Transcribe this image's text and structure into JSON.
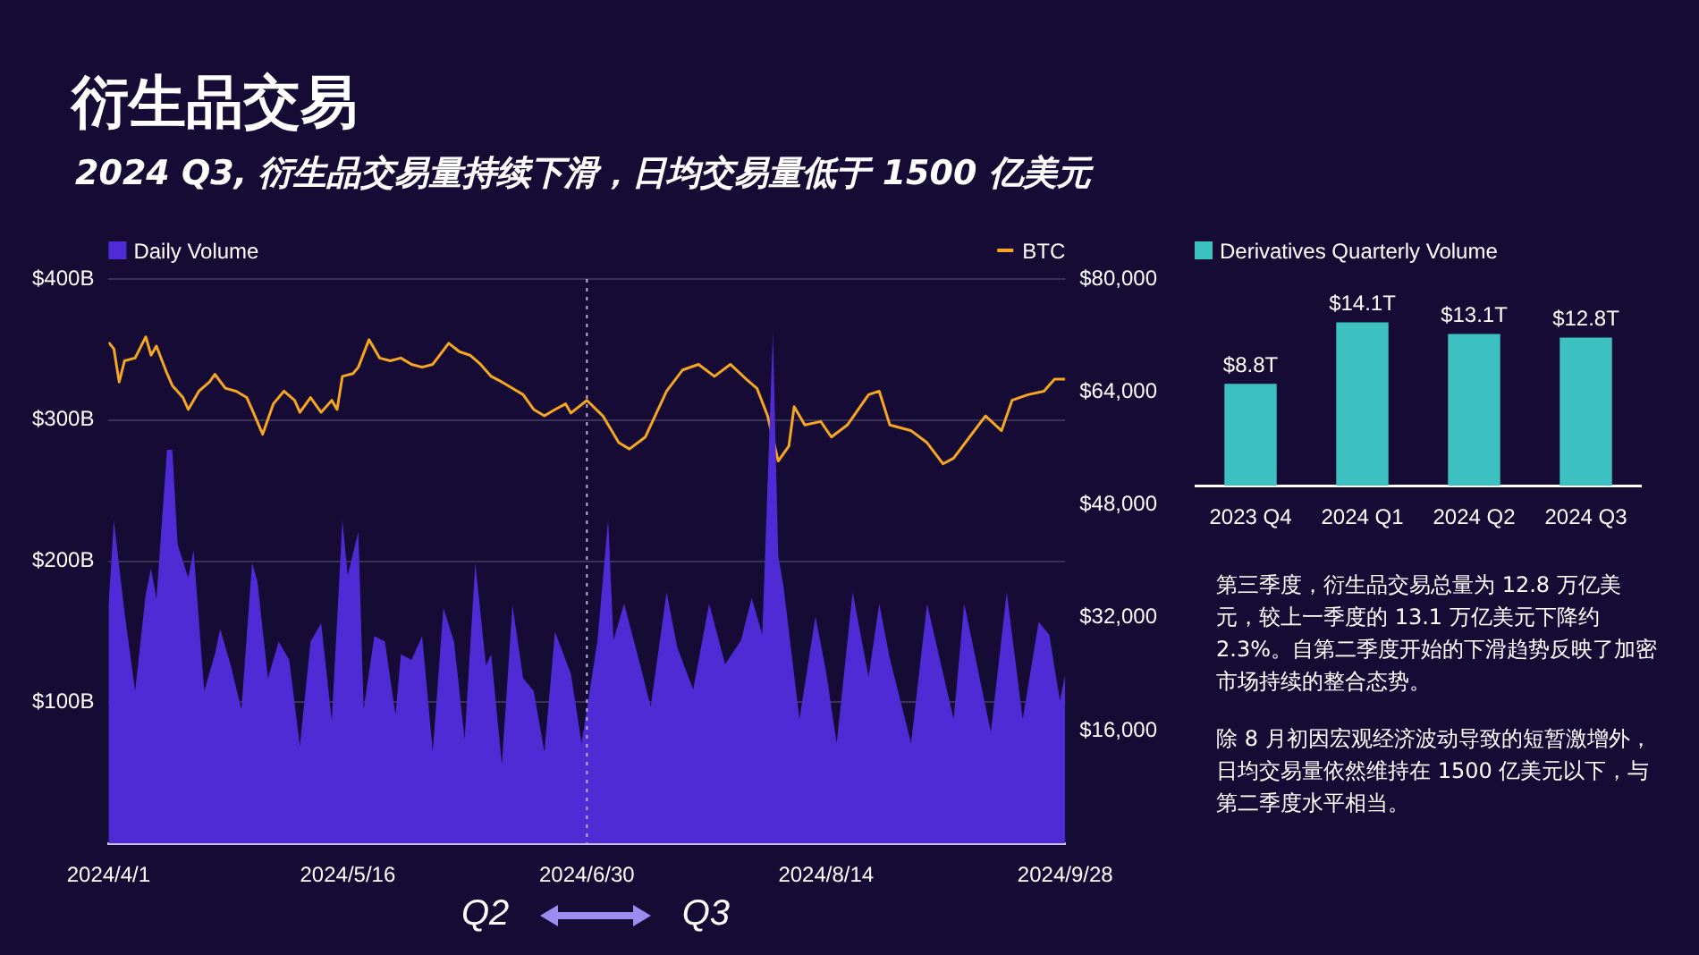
{
  "chart_data": [
    {
      "type": "area",
      "title": "衍生品交易",
      "subtitle": "2024 Q3, 衍生品交易量持续下滑，日均交易量低于 1500 亿美元",
      "legend": "top",
      "grid": "y",
      "marker": "none",
      "xlim": [
        "2024-04-01",
        "2024-09-28"
      ],
      "xticks": [
        {
          "value": "2024-04-01",
          "label": "2024/4/1"
        },
        {
          "value": "2024-05-16",
          "label": "2024/5/16"
        },
        {
          "value": "2024-06-30",
          "label": "2024/6/30"
        },
        {
          "value": "2024-08-14",
          "label": "2024/8/14"
        },
        {
          "value": "2024-09-28",
          "label": "2024/9/28"
        }
      ],
      "ylim": [
        0,
        400
      ],
      "yticks": [
        {
          "value": 100,
          "label": "$100B"
        },
        {
          "value": 200,
          "label": "$200B"
        },
        {
          "value": 300,
          "label": "$300B"
        },
        {
          "value": 400,
          "label": "$400B"
        }
      ],
      "y2lim": [
        0,
        80000
      ],
      "y2ticks": [
        {
          "value": 16000,
          "label": "$16,000"
        },
        {
          "value": 32000,
          "label": "$32,000"
        },
        {
          "value": 48000,
          "label": "$48,000"
        },
        {
          "value": 64000,
          "label": "$64,000"
        },
        {
          "value": 80000,
          "label": "$80,000"
        }
      ],
      "ref_lines": [
        {
          "axis": "x",
          "value": "2024-06-30",
          "color": "#b9b3d6",
          "line_style": "dotted"
        }
      ],
      "annotations": [
        "Q2",
        "Q3"
      ],
      "series": [
        {
          "name": "Daily Volume",
          "type": "area",
          "color": "#4f2bd6",
          "x": [
            "2024-04-01",
            "2024-04-02",
            "2024-04-04",
            "2024-04-06",
            "2024-04-08",
            "2024-04-09",
            "2024-04-10",
            "2024-04-12",
            "2024-04-13",
            "2024-04-14",
            "2024-04-16",
            "2024-04-17",
            "2024-04-19",
            "2024-04-21",
            "2024-04-22",
            "2024-04-24",
            "2024-04-26",
            "2024-04-28",
            "2024-04-29",
            "2024-05-01",
            "2024-05-03",
            "2024-05-05",
            "2024-05-07",
            "2024-05-09",
            "2024-05-11",
            "2024-05-13",
            "2024-05-15",
            "2024-05-16",
            "2024-05-18",
            "2024-05-19",
            "2024-05-21",
            "2024-05-23",
            "2024-05-25",
            "2024-05-26",
            "2024-05-28",
            "2024-05-30",
            "2024-06-01",
            "2024-06-03",
            "2024-06-05",
            "2024-06-07",
            "2024-06-09",
            "2024-06-11",
            "2024-06-12",
            "2024-06-14",
            "2024-06-16",
            "2024-06-18",
            "2024-06-20",
            "2024-06-22",
            "2024-06-24",
            "2024-06-27",
            "2024-06-29",
            "2024-07-02",
            "2024-07-04",
            "2024-07-05",
            "2024-07-07",
            "2024-07-10",
            "2024-07-12",
            "2024-07-15",
            "2024-07-17",
            "2024-07-20",
            "2024-07-23",
            "2024-07-26",
            "2024-07-29",
            "2024-07-31",
            "2024-08-02",
            "2024-08-04",
            "2024-08-05",
            "2024-08-06",
            "2024-08-09",
            "2024-08-12",
            "2024-08-14",
            "2024-08-16",
            "2024-08-19",
            "2024-08-22",
            "2024-08-24",
            "2024-08-26",
            "2024-08-30",
            "2024-09-02",
            "2024-09-07",
            "2024-09-09",
            "2024-09-14",
            "2024-09-17",
            "2024-09-20",
            "2024-09-23",
            "2024-09-25",
            "2024-09-27",
            "2024-09-28"
          ],
          "values": [
            169,
            229,
            164,
            108,
            177,
            195,
            173,
            279,
            279,
            212,
            188,
            208,
            108,
            134,
            152,
            126,
            95,
            199,
            186,
            117,
            143,
            130,
            69,
            143,
            156,
            87,
            229,
            190,
            221,
            95,
            147,
            143,
            91,
            134,
            130,
            147,
            65,
            167,
            143,
            74,
            199,
            126,
            134,
            56,
            169,
            117,
            108,
            65,
            150,
            120,
            71,
            144,
            230,
            144,
            170,
            127,
            97,
            178,
            139,
            109,
            170,
            127,
            144,
            174,
            148,
            363,
            204,
            182,
            88,
            161,
            122,
            71,
            178,
            118,
            170,
            131,
            71,
            170,
            88,
            170,
            79,
            178,
            88,
            157,
            148,
            101,
            120
          ]
        },
        {
          "name": "BTC",
          "type": "line",
          "axis": "y2",
          "color": "#f5a623",
          "x": [
            "2024-04-01",
            "2024-04-02",
            "2024-04-03",
            "2024-04-04",
            "2024-04-06",
            "2024-04-08",
            "2024-04-09",
            "2024-04-10",
            "2024-04-12",
            "2024-04-13",
            "2024-04-15",
            "2024-04-16",
            "2024-04-18",
            "2024-04-20",
            "2024-04-21",
            "2024-04-23",
            "2024-04-25",
            "2024-04-27",
            "2024-04-28",
            "2024-04-30",
            "2024-05-02",
            "2024-05-04",
            "2024-05-06",
            "2024-05-07",
            "2024-05-09",
            "2024-05-11",
            "2024-05-13",
            "2024-05-14",
            "2024-05-15",
            "2024-05-17",
            "2024-05-18",
            "2024-05-20",
            "2024-05-22",
            "2024-05-24",
            "2024-05-26",
            "2024-05-28",
            "2024-05-30",
            "2024-06-01",
            "2024-06-04",
            "2024-06-06",
            "2024-06-08",
            "2024-06-10",
            "2024-06-12",
            "2024-06-14",
            "2024-06-16",
            "2024-06-18",
            "2024-06-20",
            "2024-06-22",
            "2024-06-24",
            "2024-06-26",
            "2024-06-27",
            "2024-06-30",
            "2024-07-03",
            "2024-07-06",
            "2024-07-08",
            "2024-07-11",
            "2024-07-15",
            "2024-07-18",
            "2024-07-21",
            "2024-07-24",
            "2024-07-27",
            "2024-07-30",
            "2024-08-01",
            "2024-08-03",
            "2024-08-05",
            "2024-08-07",
            "2024-08-08",
            "2024-08-10",
            "2024-08-13",
            "2024-08-15",
            "2024-08-18",
            "2024-08-22",
            "2024-08-24",
            "2024-08-26",
            "2024-08-30",
            "2024-09-02",
            "2024-09-05",
            "2024-09-07",
            "2024-09-10",
            "2024-09-13",
            "2024-09-16",
            "2024-09-18",
            "2024-09-21",
            "2024-09-24",
            "2024-09-26",
            "2024-09-28"
          ],
          "values": [
            71000,
            70100,
            65400,
            68400,
            68800,
            71800,
            69200,
            70500,
            66600,
            64900,
            63200,
            61500,
            64100,
            65400,
            66500,
            64500,
            64100,
            63200,
            61500,
            58000,
            62300,
            64100,
            62800,
            61100,
            63200,
            61100,
            62800,
            61500,
            66200,
            66600,
            67500,
            71400,
            68800,
            68400,
            68800,
            67900,
            67500,
            67900,
            70900,
            69700,
            69200,
            67900,
            66200,
            65400,
            64500,
            63600,
            61500,
            60600,
            61500,
            62300,
            61000,
            62800,
            60600,
            56800,
            55900,
            57600,
            64100,
            67100,
            67900,
            66200,
            67900,
            65800,
            64500,
            60600,
            54200,
            56300,
            61900,
            59300,
            59800,
            57600,
            59300,
            63600,
            64100,
            59300,
            58500,
            56800,
            53800,
            54600,
            57600,
            60600,
            58500,
            62800,
            63600,
            64100,
            65800,
            65800
          ]
        }
      ]
    },
    {
      "type": "bar",
      "legend": "top",
      "tick_labels": "x",
      "categories": [
        "2023 Q4",
        "2024 Q1",
        "2024 Q2",
        "2024 Q3"
      ],
      "annotations": [
        "第三季度，衍生品交易总量为 12.8 万亿美元，较上一季度的 13.1 万亿美元下降约 2.3%。自第二季度开始的下滑趋势反映了加密市场持续的整合态势。",
        "除 8 月初因宏观经济波动导致的短暂激增外，日均交易量依然维持在 1500 亿美元以下，与第二季度水平相当。"
      ],
      "series": [
        {
          "name": "Derivatives Quarterly Volume",
          "color": "#3cc0c0",
          "values": [
            8.8,
            14.1,
            13.1,
            12.8
          ],
          "value_labels": [
            "$8.8T",
            "$14.1T",
            "$13.1T",
            "$12.8T"
          ]
        }
      ]
    }
  ]
}
